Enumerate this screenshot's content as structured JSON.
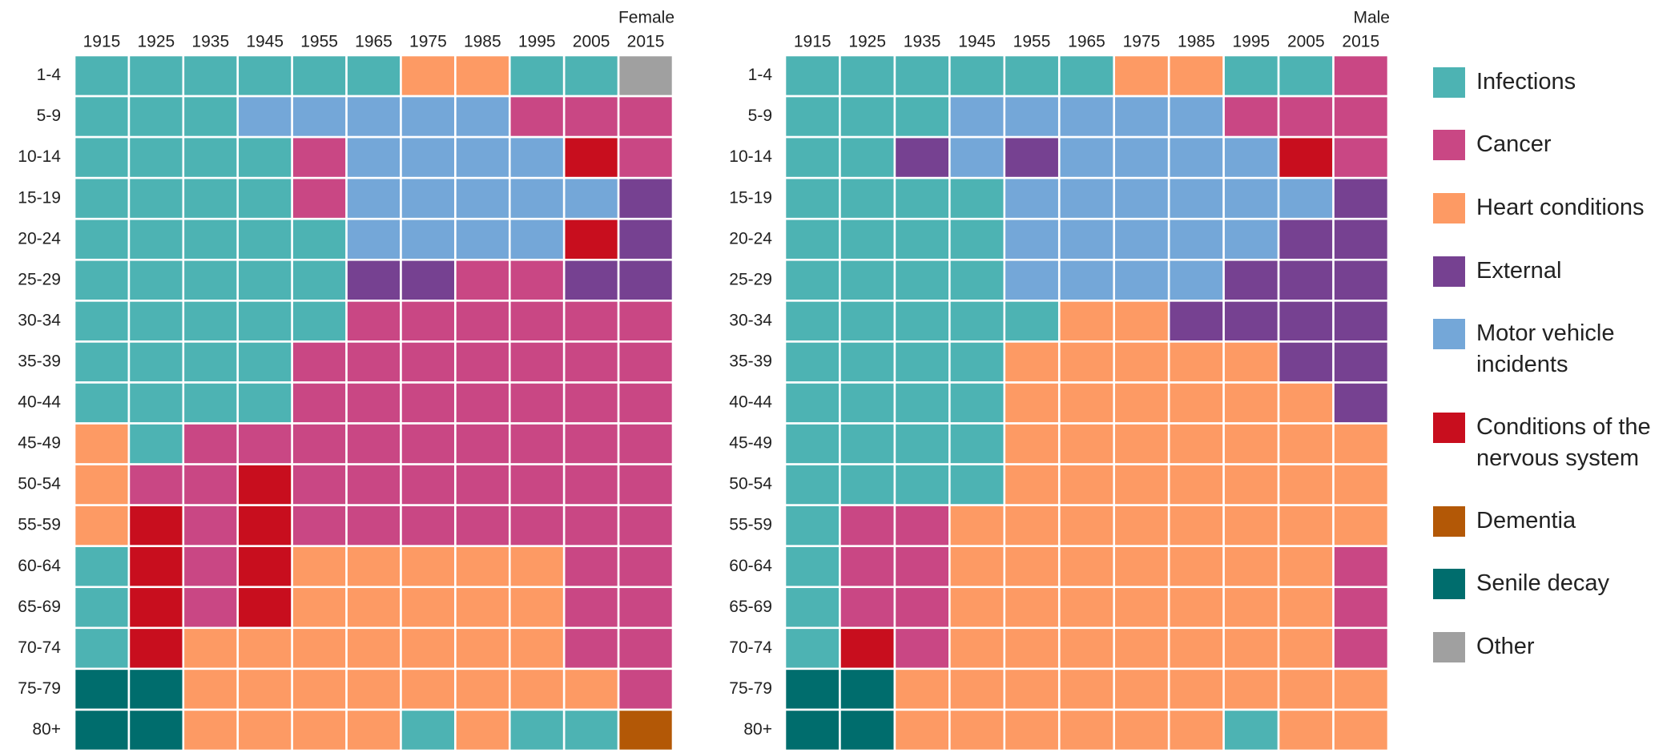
{
  "chart_data": [
    {
      "type": "heatmap",
      "title": "Female",
      "x": [
        1915,
        1925,
        1935,
        1945,
        1955,
        1965,
        1975,
        1985,
        1995,
        2005,
        2015
      ],
      "categories": [
        "1-4",
        "5-9",
        "10-14",
        "15-19",
        "20-24",
        "25-29",
        "30-34",
        "35-39",
        "40-44",
        "45-49",
        "50-54",
        "55-59",
        "60-64",
        "65-69",
        "70-74",
        "75-79",
        "80+"
      ],
      "cells": [
        [
          "Infections",
          "Infections",
          "Infections",
          "Infections",
          "Infections",
          "Infections",
          "Heart conditions",
          "Heart conditions",
          "Infections",
          "Infections",
          "Other"
        ],
        [
          "Infections",
          "Infections",
          "Infections",
          "Motor vehicle incidents",
          "Motor vehicle incidents",
          "Motor vehicle incidents",
          "Motor vehicle incidents",
          "Motor vehicle incidents",
          "Cancer",
          "Cancer",
          "Cancer"
        ],
        [
          "Infections",
          "Infections",
          "Infections",
          "Infections",
          "Cancer",
          "Motor vehicle incidents",
          "Motor vehicle incidents",
          "Motor vehicle incidents",
          "Motor vehicle incidents",
          "Conditions of the nervous system",
          "Cancer"
        ],
        [
          "Infections",
          "Infections",
          "Infections",
          "Infections",
          "Cancer",
          "Motor vehicle incidents",
          "Motor vehicle incidents",
          "Motor vehicle incidents",
          "Motor vehicle incidents",
          "Motor vehicle incidents",
          "External"
        ],
        [
          "Infections",
          "Infections",
          "Infections",
          "Infections",
          "Infections",
          "Motor vehicle incidents",
          "Motor vehicle incidents",
          "Motor vehicle incidents",
          "Motor vehicle incidents",
          "Conditions of the nervous system",
          "External"
        ],
        [
          "Infections",
          "Infections",
          "Infections",
          "Infections",
          "Infections",
          "External",
          "External",
          "Cancer",
          "Cancer",
          "External",
          "External"
        ],
        [
          "Infections",
          "Infections",
          "Infections",
          "Infections",
          "Infections",
          "Cancer",
          "Cancer",
          "Cancer",
          "Cancer",
          "Cancer",
          "Cancer"
        ],
        [
          "Infections",
          "Infections",
          "Infections",
          "Infections",
          "Cancer",
          "Cancer",
          "Cancer",
          "Cancer",
          "Cancer",
          "Cancer",
          "Cancer"
        ],
        [
          "Infections",
          "Infections",
          "Infections",
          "Infections",
          "Cancer",
          "Cancer",
          "Cancer",
          "Cancer",
          "Cancer",
          "Cancer",
          "Cancer"
        ],
        [
          "Heart conditions",
          "Infections",
          "Cancer",
          "Cancer",
          "Cancer",
          "Cancer",
          "Cancer",
          "Cancer",
          "Cancer",
          "Cancer",
          "Cancer"
        ],
        [
          "Heart conditions",
          "Cancer",
          "Cancer",
          "Conditions of the nervous system",
          "Cancer",
          "Cancer",
          "Cancer",
          "Cancer",
          "Cancer",
          "Cancer",
          "Cancer"
        ],
        [
          "Heart conditions",
          "Conditions of the nervous system",
          "Cancer",
          "Conditions of the nervous system",
          "Cancer",
          "Cancer",
          "Cancer",
          "Cancer",
          "Cancer",
          "Cancer",
          "Cancer"
        ],
        [
          "Infections",
          "Conditions of the nervous system",
          "Cancer",
          "Conditions of the nervous system",
          "Heart conditions",
          "Heart conditions",
          "Heart conditions",
          "Heart conditions",
          "Heart conditions",
          "Cancer",
          "Cancer"
        ],
        [
          "Infections",
          "Conditions of the nervous system",
          "Cancer",
          "Conditions of the nervous system",
          "Heart conditions",
          "Heart conditions",
          "Heart conditions",
          "Heart conditions",
          "Heart conditions",
          "Cancer",
          "Cancer"
        ],
        [
          "Infections",
          "Conditions of the nervous system",
          "Heart conditions",
          "Heart conditions",
          "Heart conditions",
          "Heart conditions",
          "Heart conditions",
          "Heart conditions",
          "Heart conditions",
          "Cancer",
          "Cancer"
        ],
        [
          "Senile decay",
          "Senile decay",
          "Heart conditions",
          "Heart conditions",
          "Heart conditions",
          "Heart conditions",
          "Heart conditions",
          "Heart conditions",
          "Heart conditions",
          "Heart conditions",
          "Cancer"
        ],
        [
          "Senile decay",
          "Senile decay",
          "Heart conditions",
          "Heart conditions",
          "Heart conditions",
          "Heart conditions",
          "Infections",
          "Heart conditions",
          "Infections",
          "Infections",
          "Dementia"
        ]
      ]
    },
    {
      "type": "heatmap",
      "title": "Male",
      "x": [
        1915,
        1925,
        1935,
        1945,
        1955,
        1965,
        1975,
        1985,
        1995,
        2005,
        2015
      ],
      "categories": [
        "1-4",
        "5-9",
        "10-14",
        "15-19",
        "20-24",
        "25-29",
        "30-34",
        "35-39",
        "40-44",
        "45-49",
        "50-54",
        "55-59",
        "60-64",
        "65-69",
        "70-74",
        "75-79",
        "80+"
      ],
      "cells": [
        [
          "Infections",
          "Infections",
          "Infections",
          "Infections",
          "Infections",
          "Infections",
          "Heart conditions",
          "Heart conditions",
          "Infections",
          "Infections",
          "Cancer"
        ],
        [
          "Infections",
          "Infections",
          "Infections",
          "Motor vehicle incidents",
          "Motor vehicle incidents",
          "Motor vehicle incidents",
          "Motor vehicle incidents",
          "Motor vehicle incidents",
          "Cancer",
          "Cancer",
          "Cancer"
        ],
        [
          "Infections",
          "Infections",
          "External",
          "Motor vehicle incidents",
          "External",
          "Motor vehicle incidents",
          "Motor vehicle incidents",
          "Motor vehicle incidents",
          "Motor vehicle incidents",
          "Conditions of the nervous system",
          "Cancer"
        ],
        [
          "Infections",
          "Infections",
          "Infections",
          "Infections",
          "Motor vehicle incidents",
          "Motor vehicle incidents",
          "Motor vehicle incidents",
          "Motor vehicle incidents",
          "Motor vehicle incidents",
          "Motor vehicle incidents",
          "External"
        ],
        [
          "Infections",
          "Infections",
          "Infections",
          "Infections",
          "Motor vehicle incidents",
          "Motor vehicle incidents",
          "Motor vehicle incidents",
          "Motor vehicle incidents",
          "Motor vehicle incidents",
          "External",
          "External"
        ],
        [
          "Infections",
          "Infections",
          "Infections",
          "Infections",
          "Motor vehicle incidents",
          "Motor vehicle incidents",
          "Motor vehicle incidents",
          "Motor vehicle incidents",
          "External",
          "External",
          "External"
        ],
        [
          "Infections",
          "Infections",
          "Infections",
          "Infections",
          "Infections",
          "Heart conditions",
          "Heart conditions",
          "External",
          "External",
          "External",
          "External"
        ],
        [
          "Infections",
          "Infections",
          "Infections",
          "Infections",
          "Heart conditions",
          "Heart conditions",
          "Heart conditions",
          "Heart conditions",
          "Heart conditions",
          "External",
          "External"
        ],
        [
          "Infections",
          "Infections",
          "Infections",
          "Infections",
          "Heart conditions",
          "Heart conditions",
          "Heart conditions",
          "Heart conditions",
          "Heart conditions",
          "Heart conditions",
          "External"
        ],
        [
          "Infections",
          "Infections",
          "Infections",
          "Infections",
          "Heart conditions",
          "Heart conditions",
          "Heart conditions",
          "Heart conditions",
          "Heart conditions",
          "Heart conditions",
          "Heart conditions"
        ],
        [
          "Infections",
          "Infections",
          "Infections",
          "Infections",
          "Heart conditions",
          "Heart conditions",
          "Heart conditions",
          "Heart conditions",
          "Heart conditions",
          "Heart conditions",
          "Heart conditions"
        ],
        [
          "Infections",
          "Cancer",
          "Cancer",
          "Heart conditions",
          "Heart conditions",
          "Heart conditions",
          "Heart conditions",
          "Heart conditions",
          "Heart conditions",
          "Heart conditions",
          "Heart conditions"
        ],
        [
          "Infections",
          "Cancer",
          "Cancer",
          "Heart conditions",
          "Heart conditions",
          "Heart conditions",
          "Heart conditions",
          "Heart conditions",
          "Heart conditions",
          "Heart conditions",
          "Cancer"
        ],
        [
          "Infections",
          "Cancer",
          "Cancer",
          "Heart conditions",
          "Heart conditions",
          "Heart conditions",
          "Heart conditions",
          "Heart conditions",
          "Heart conditions",
          "Heart conditions",
          "Cancer"
        ],
        [
          "Infections",
          "Conditions of the nervous system",
          "Cancer",
          "Heart conditions",
          "Heart conditions",
          "Heart conditions",
          "Heart conditions",
          "Heart conditions",
          "Heart conditions",
          "Heart conditions",
          "Cancer"
        ],
        [
          "Senile decay",
          "Senile decay",
          "Heart conditions",
          "Heart conditions",
          "Heart conditions",
          "Heart conditions",
          "Heart conditions",
          "Heart conditions",
          "Heart conditions",
          "Heart conditions",
          "Heart conditions"
        ],
        [
          "Senile decay",
          "Senile decay",
          "Heart conditions",
          "Heart conditions",
          "Heart conditions",
          "Heart conditions",
          "Heart conditions",
          "Heart conditions",
          "Infections",
          "Heart conditions",
          "Heart conditions"
        ]
      ]
    }
  ],
  "legend": [
    {
      "name": "Infections",
      "color": "#4db3b3"
    },
    {
      "name": "Cancer",
      "color": "#c94784"
    },
    {
      "name": "Heart conditions",
      "color": "#fd9a64"
    },
    {
      "name": "External",
      "color": "#764191"
    },
    {
      "name": "Motor vehicle incidents",
      "color": "#74a7d8"
    },
    {
      "name": "Conditions of the nervous system",
      "color": "#c80e1e"
    },
    {
      "name": "Dementia",
      "color": "#b35806"
    },
    {
      "name": "Senile decay",
      "color": "#006d6d"
    },
    {
      "name": "Other",
      "color": "#a0a0a0"
    }
  ]
}
